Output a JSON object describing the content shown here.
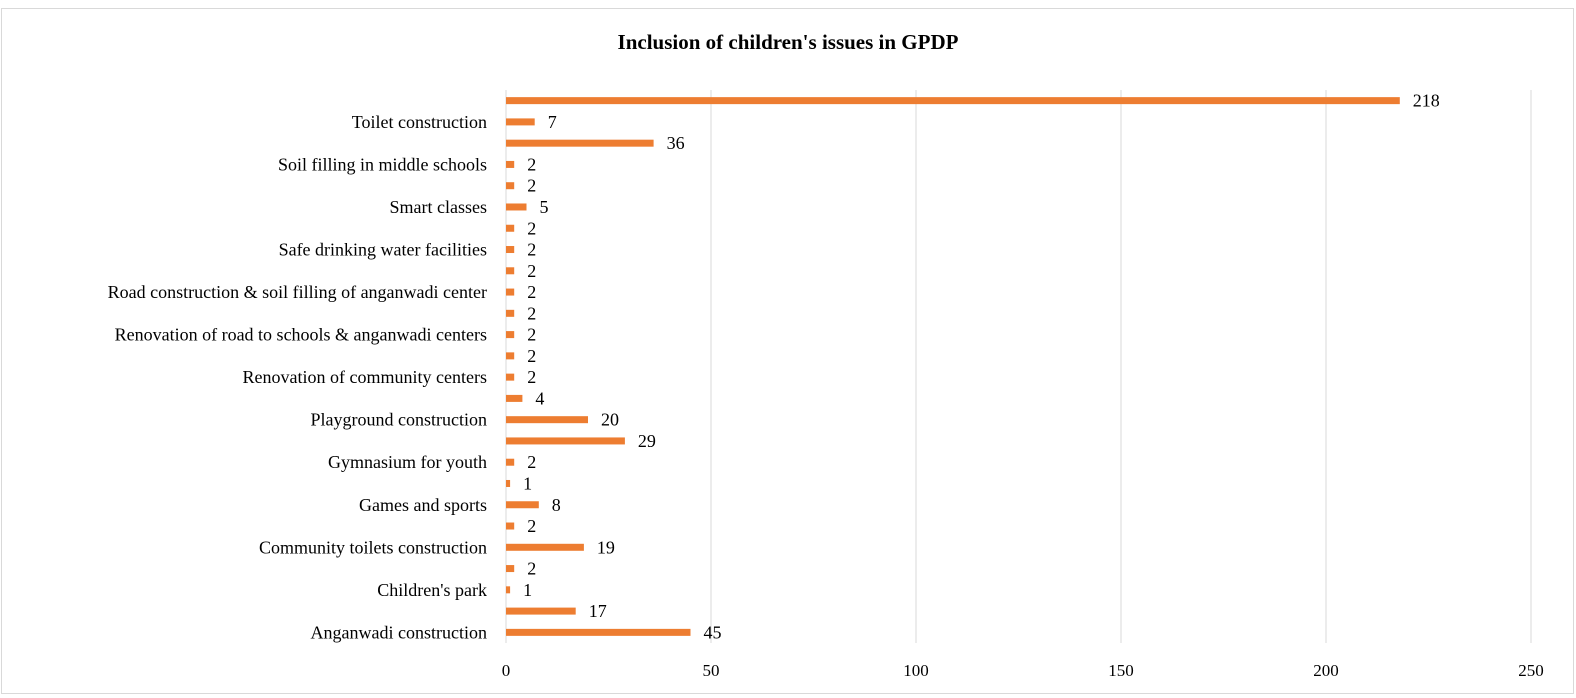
{
  "chart_data": {
    "type": "bar",
    "orientation": "horizontal",
    "title": "Inclusion of children's issues in GPDP",
    "xlabel": "",
    "ylabel": "",
    "xlim": [
      0,
      250
    ],
    "x_ticks": [
      0,
      50,
      100,
      150,
      200,
      250
    ],
    "grid": "vertical",
    "legend": "none",
    "bar_color": "#ED7D31",
    "rows": [
      {
        "label": "",
        "value": 218
      },
      {
        "label": "Toilet construction",
        "value": 7
      },
      {
        "label": "",
        "value": 36
      },
      {
        "label": "Soil filling in middle schools",
        "value": 2
      },
      {
        "label": "",
        "value": 2
      },
      {
        "label": "Smart classes",
        "value": 5
      },
      {
        "label": "",
        "value": 2
      },
      {
        "label": "Safe drinking water facilities",
        "value": 2
      },
      {
        "label": "",
        "value": 2
      },
      {
        "label": "Road construction & soil filling of anganwadi center",
        "value": 2
      },
      {
        "label": "",
        "value": 2
      },
      {
        "label": "Renovation of road to schools & anganwadi centers",
        "value": 2
      },
      {
        "label": "",
        "value": 2
      },
      {
        "label": "Renovation of community centers",
        "value": 2
      },
      {
        "label": "",
        "value": 4
      },
      {
        "label": "Playground construction",
        "value": 20
      },
      {
        "label": "",
        "value": 29
      },
      {
        "label": "Gymnasium for youth",
        "value": 2
      },
      {
        "label": "",
        "value": 1
      },
      {
        "label": "Games and sports",
        "value": 8
      },
      {
        "label": "",
        "value": 2
      },
      {
        "label": "Community toilets construction",
        "value": 19
      },
      {
        "label": "",
        "value": 2
      },
      {
        "label": "Children's park",
        "value": 1
      },
      {
        "label": "",
        "value": 17
      },
      {
        "label": "Anganwadi construction",
        "value": 45
      }
    ]
  }
}
